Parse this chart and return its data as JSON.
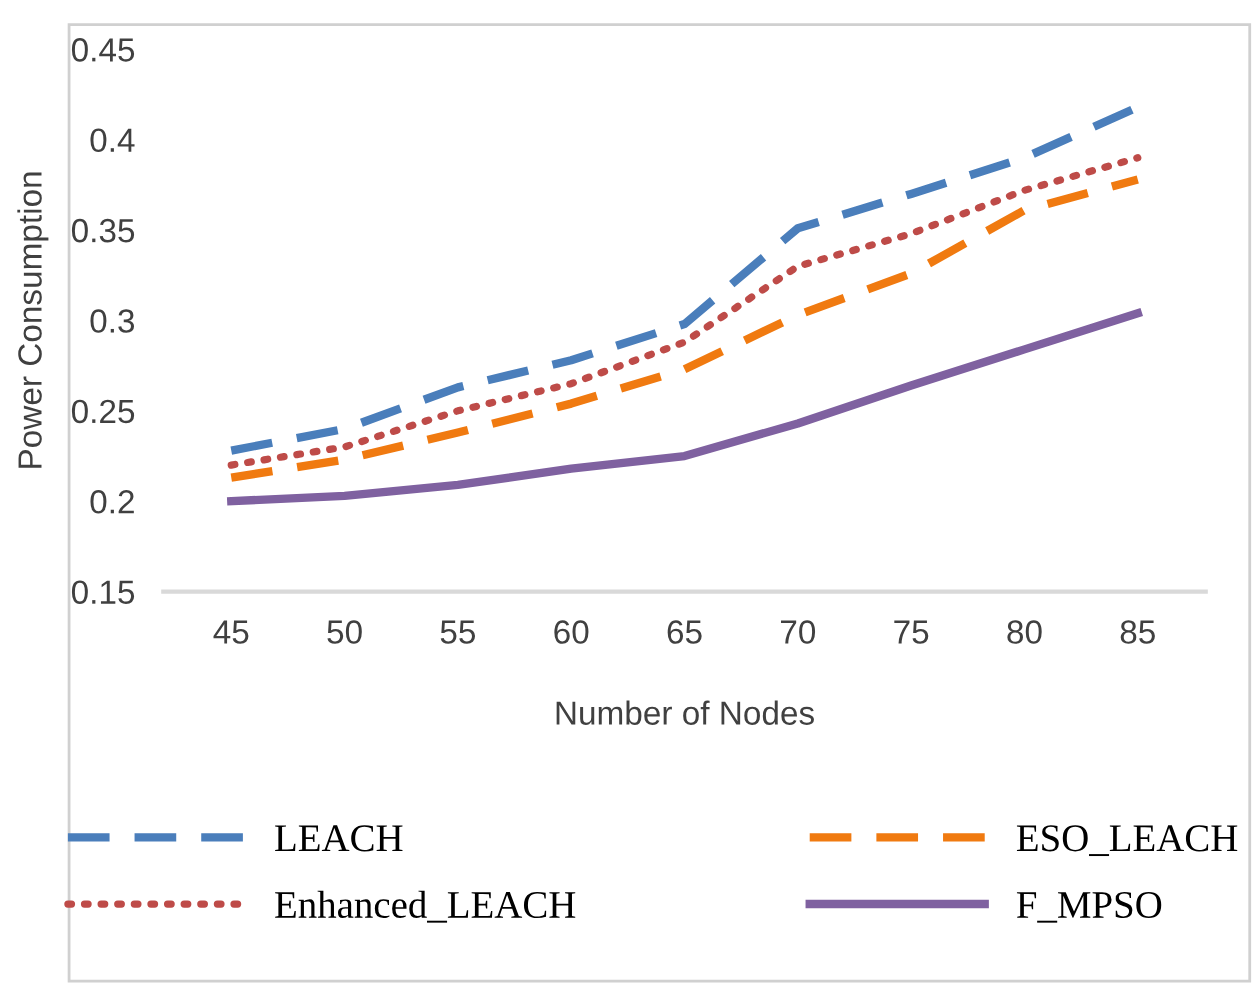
{
  "chart_data": {
    "type": "line",
    "xlabel": "Number of Nodes",
    "ylabel": "Power Consumption",
    "categories": [
      "45",
      "50",
      "55",
      "60",
      "65",
      "70",
      "75",
      "80",
      "85"
    ],
    "series": [
      {
        "name": "LEACH",
        "color": "#4a7ebb",
        "line_style": "dashed",
        "values": [
          0.228,
          0.24,
          0.263,
          0.278,
          0.298,
          0.351,
          0.37,
          0.39,
          0.418
        ]
      },
      {
        "name": "Enhanced_LEACH",
        "color": "#be4b48",
        "line_style": "dotted",
        "values": [
          0.22,
          0.23,
          0.25,
          0.265,
          0.288,
          0.33,
          0.348,
          0.372,
          0.39
        ]
      },
      {
        "name": "ESO_LEACH",
        "color": "#f07a10",
        "line_style": "dashed",
        "values": [
          0.213,
          0.223,
          0.238,
          0.254,
          0.273,
          0.303,
          0.326,
          0.361,
          0.378
        ]
      },
      {
        "name": "F_MPSO",
        "color": "#7f61a0",
        "line_style": "solid",
        "values": [
          0.2,
          0.203,
          0.209,
          0.218,
          0.225,
          0.243,
          0.264,
          0.284,
          0.304
        ]
      }
    ],
    "ylim": [
      0.15,
      0.45
    ],
    "yticks": [
      0.15,
      0.2,
      0.25,
      0.3,
      0.35,
      0.4,
      0.45
    ],
    "grid": false,
    "legend": "bottom"
  }
}
